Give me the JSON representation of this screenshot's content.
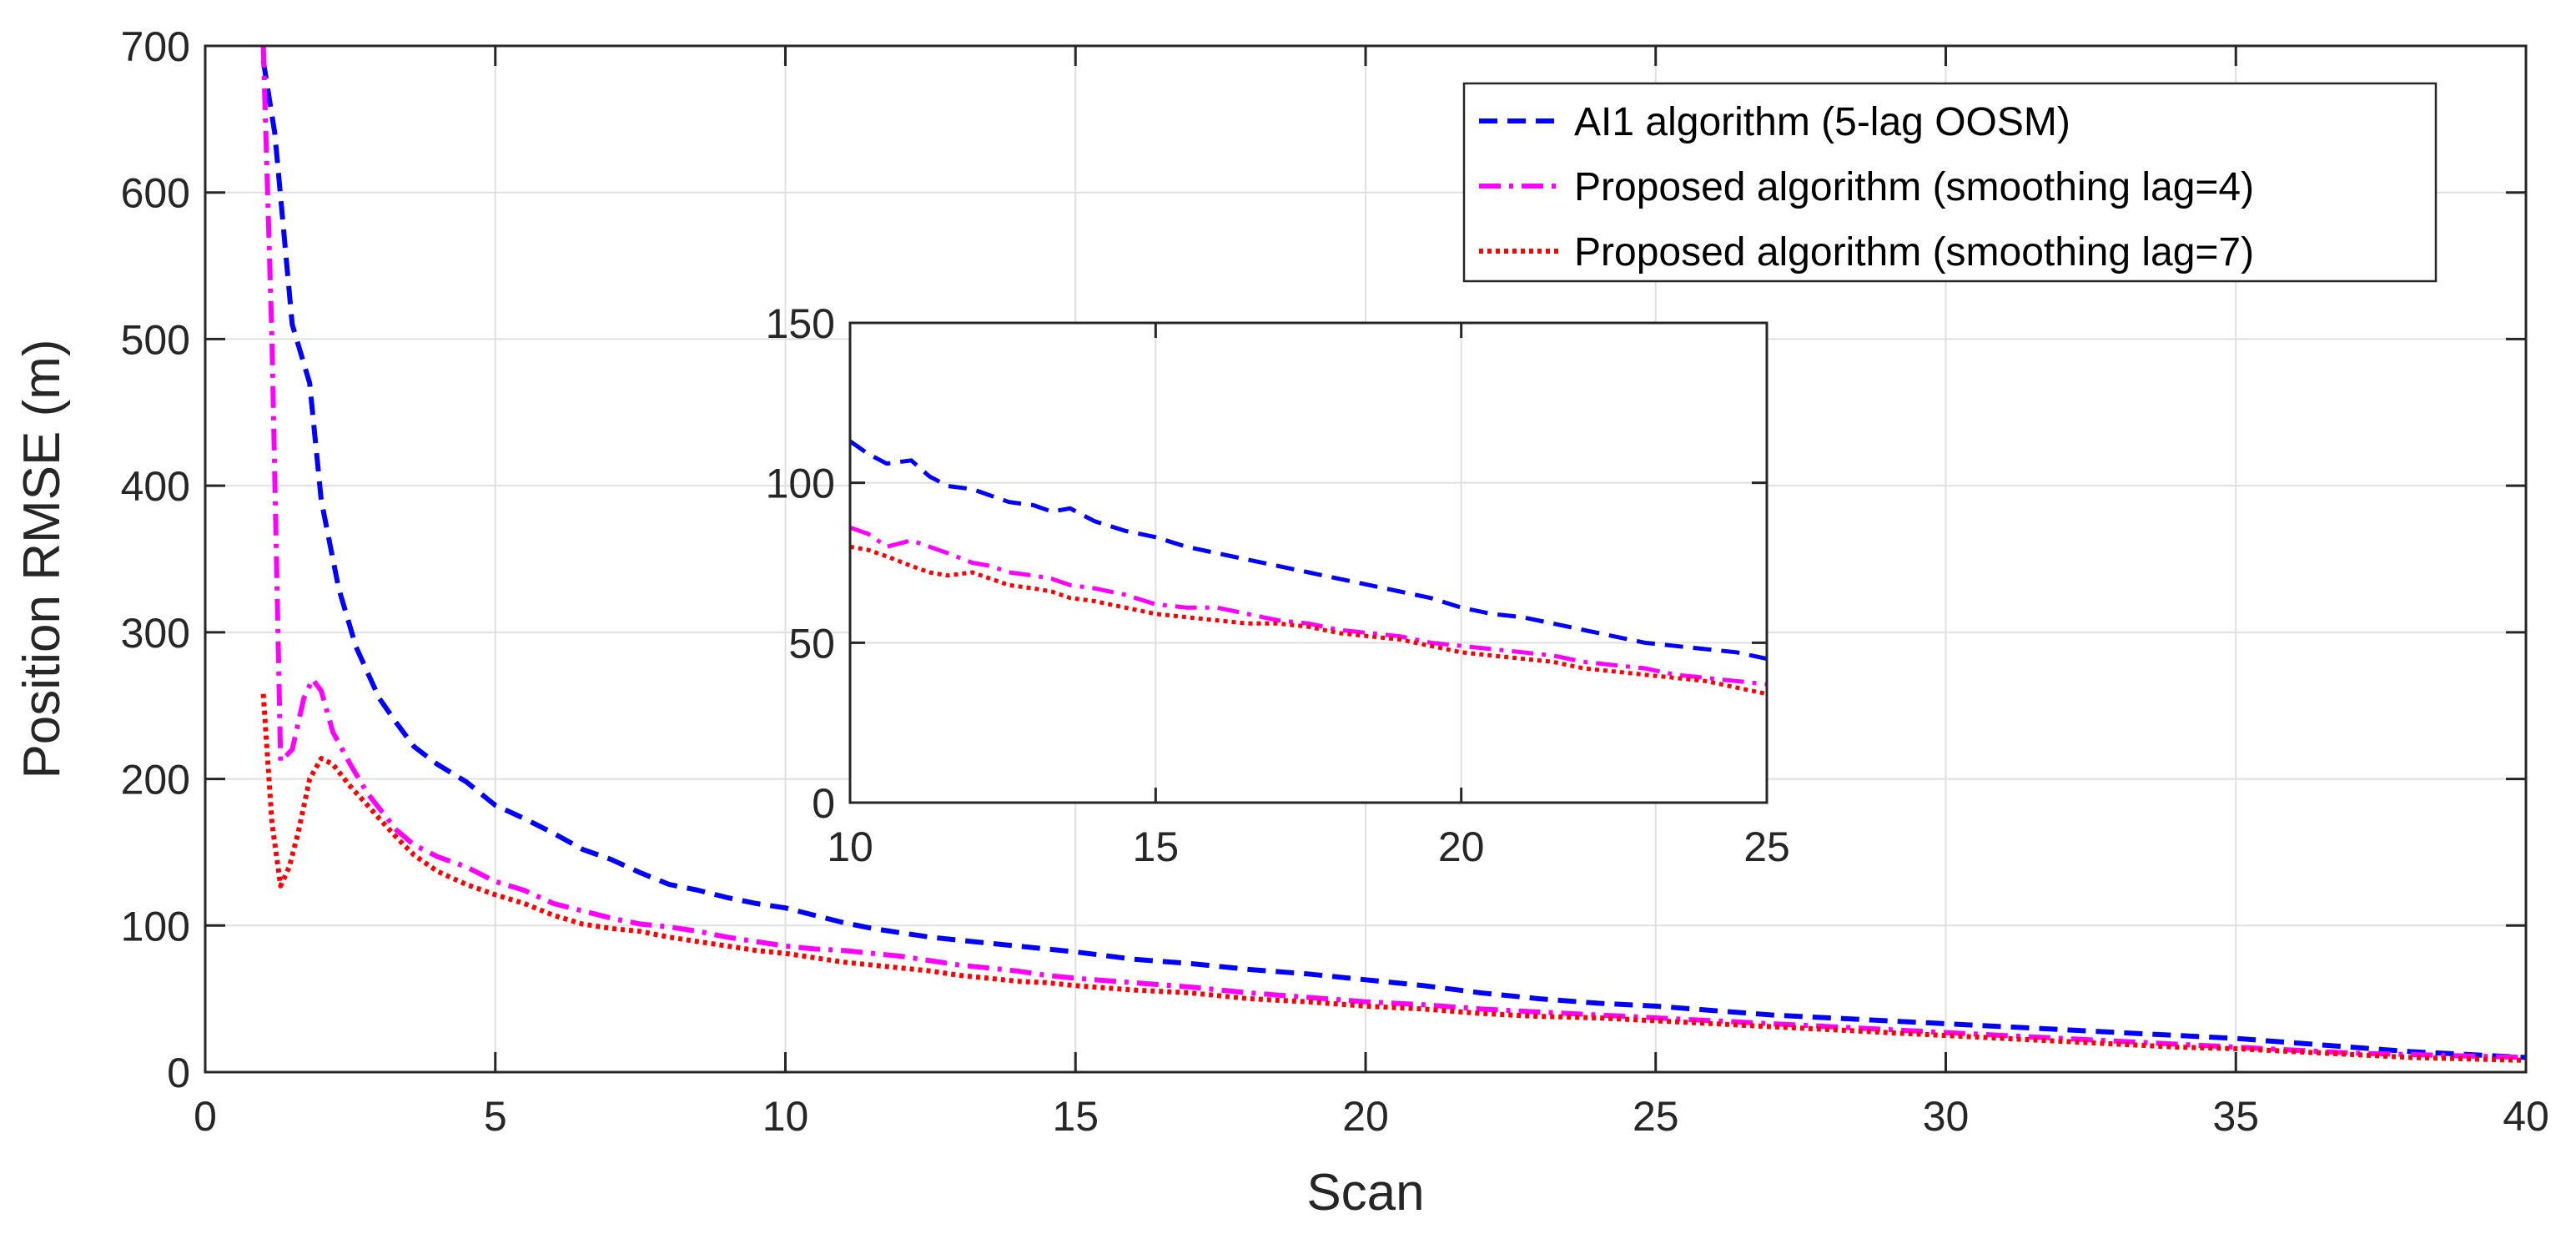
{
  "chart_data": [
    {
      "id": "main",
      "type": "line",
      "title": "",
      "xlabel": "Scan",
      "ylabel": "Position RMSE (m)",
      "xlim": [
        0,
        40
      ],
      "ylim": [
        0,
        700
      ],
      "xticks": [
        0,
        5,
        10,
        15,
        20,
        25,
        30,
        35,
        40
      ],
      "yticks": [
        0,
        100,
        200,
        300,
        400,
        500,
        600,
        700
      ],
      "grid": true,
      "legend_position": "top-right",
      "series": [
        {
          "name": "AI1 algorithm (5-lag OOSM)",
          "color": "#0000ff",
          "style": "dashed",
          "x": [
            1,
            1.2,
            1.5,
            1.8,
            2,
            2.3,
            2.6,
            3,
            3.3,
            3.6,
            4,
            4.5,
            5,
            5.5,
            6,
            6.5,
            7,
            7.5,
            8,
            8.5,
            9,
            9.5,
            10,
            10.5,
            11,
            11.5,
            12,
            12.5,
            13,
            13.5,
            14,
            14.5,
            15,
            16,
            17,
            18,
            19,
            20,
            21,
            22,
            23,
            24,
            25,
            26,
            27,
            28,
            29,
            30,
            31,
            32,
            33,
            34,
            35,
            36,
            37,
            38,
            39,
            40
          ],
          "y": [
            690,
            640,
            510,
            470,
            390,
            330,
            290,
            255,
            238,
            222,
            210,
            198,
            182,
            173,
            163,
            152,
            145,
            136,
            128,
            124,
            119,
            115,
            112,
            107,
            102,
            98,
            95,
            92,
            90,
            88,
            86,
            84,
            82,
            77,
            74,
            70,
            67,
            63,
            59,
            54,
            50,
            47,
            45,
            42,
            39,
            37,
            35,
            33,
            31,
            29,
            27,
            25,
            23,
            20,
            17,
            14,
            12,
            10
          ]
        },
        {
          "name": "Proposed algorithm (smoothing lag=4)",
          "color": "#ff00ff",
          "style": "dashdot",
          "x": [
            1,
            1.15,
            1.3,
            1.5,
            1.7,
            1.85,
            2,
            2.2,
            2.5,
            2.8,
            3,
            3.3,
            3.6,
            4,
            4.5,
            5,
            5.5,
            6,
            6.5,
            7,
            7.5,
            8,
            8.5,
            9,
            9.5,
            10,
            10.5,
            11,
            11.5,
            12,
            12.5,
            13,
            13.5,
            14,
            14.5,
            15,
            16,
            17,
            18,
            19,
            20,
            21,
            22,
            23,
            24,
            25,
            26,
            27,
            28,
            29,
            30,
            31,
            32,
            33,
            34,
            35,
            36,
            37,
            38,
            39,
            40
          ],
          "y": [
            700,
            500,
            212,
            220,
            255,
            268,
            260,
            232,
            210,
            190,
            180,
            165,
            155,
            147,
            140,
            130,
            124,
            115,
            110,
            105,
            101,
            99,
            96,
            92,
            89,
            86,
            84,
            83,
            81,
            79,
            76,
            73,
            71,
            69,
            66,
            64,
            61,
            58,
            54,
            51,
            48,
            46,
            43,
            41,
            39,
            37,
            35,
            33,
            31,
            29,
            27,
            25,
            23,
            21,
            19,
            17,
            15,
            13,
            12,
            11,
            10
          ]
        },
        {
          "name": "Proposed algorithm (smoothing lag=7)",
          "color": "#ff0000",
          "style": "dotted",
          "x": [
            1,
            1.15,
            1.3,
            1.45,
            1.6,
            1.8,
            2,
            2.2,
            2.5,
            2.8,
            3,
            3.3,
            3.6,
            4,
            4.5,
            5,
            5.5,
            6,
            6.5,
            7,
            7.5,
            8,
            8.5,
            9,
            9.5,
            10,
            10.5,
            11,
            11.5,
            12,
            12.5,
            13,
            13.5,
            14,
            14.5,
            15,
            16,
            17,
            18,
            19,
            20,
            21,
            22,
            23,
            24,
            25,
            26,
            27,
            28,
            29,
            30,
            31,
            32,
            33,
            34,
            35,
            36,
            37,
            38,
            39,
            40
          ],
          "y": [
            258,
            170,
            127,
            140,
            163,
            200,
            214,
            210,
            195,
            182,
            173,
            160,
            148,
            137,
            128,
            121,
            115,
            107,
            101,
            98,
            96,
            92,
            89,
            86,
            83,
            81,
            78,
            75,
            73,
            71,
            69,
            66,
            64,
            62,
            61,
            59,
            56,
            54,
            50,
            48,
            45,
            43,
            40,
            38,
            37,
            35,
            33,
            31,
            29,
            27,
            25,
            23,
            21,
            19,
            17,
            16,
            14,
            12,
            10,
            9,
            8
          ]
        }
      ]
    },
    {
      "id": "inset",
      "type": "line",
      "title": "",
      "xlabel": "",
      "ylabel": "",
      "xlim": [
        10,
        25
      ],
      "ylim": [
        0,
        150
      ],
      "xticks": [
        10,
        15,
        20,
        25
      ],
      "yticks": [
        0,
        50,
        100,
        150
      ],
      "grid": true,
      "series": [
        {
          "name": "AI1 algorithm (5-lag OOSM)",
          "color": "#0000ff",
          "style": "dashed",
          "x": [
            10,
            10.3,
            10.6,
            11,
            11.3,
            11.6,
            12,
            12.3,
            12.6,
            13,
            13.3,
            13.6,
            14,
            14.5,
            15,
            15.5,
            16,
            16.5,
            17,
            17.5,
            18,
            18.5,
            19,
            19.5,
            20,
            20.5,
            21,
            21.5,
            22,
            22.5,
            23,
            23.5,
            24,
            24.5,
            25
          ],
          "y": [
            113,
            109,
            106,
            107,
            102,
            99,
            98,
            96,
            94,
            93,
            91,
            92,
            88,
            85,
            83,
            80,
            78,
            76,
            74,
            72,
            70,
            68,
            66,
            64,
            61,
            59,
            58,
            56,
            54,
            52,
            50,
            49,
            48,
            47,
            45
          ]
        },
        {
          "name": "Proposed algorithm (smoothing lag=4)",
          "color": "#ff00ff",
          "style": "dashdot",
          "x": [
            10,
            10.3,
            10.6,
            11,
            11.3,
            11.6,
            12,
            12.3,
            12.6,
            13,
            13.3,
            13.6,
            14,
            14.5,
            15,
            15.5,
            16,
            16.5,
            17,
            17.5,
            18,
            18.5,
            19,
            19.5,
            20,
            20.5,
            21,
            21.5,
            22,
            22.5,
            23,
            23.5,
            24,
            24.5,
            25
          ],
          "y": [
            86,
            84,
            80,
            82,
            80,
            78,
            75,
            74,
            72,
            71,
            70,
            68,
            67,
            65,
            62,
            61,
            61,
            59,
            57,
            56,
            54,
            53,
            52,
            50,
            49,
            48,
            47,
            46,
            44,
            43,
            42,
            40,
            39,
            38,
            37
          ]
        },
        {
          "name": "Proposed algorithm (smoothing lag=7)",
          "color": "#ff0000",
          "style": "dotted",
          "x": [
            10,
            10.3,
            10.6,
            11,
            11.3,
            11.6,
            12,
            12.3,
            12.6,
            13,
            13.3,
            13.6,
            14,
            14.5,
            15,
            15.5,
            16,
            16.5,
            17,
            17.5,
            18,
            18.5,
            19,
            19.5,
            20,
            20.5,
            21,
            21.5,
            22,
            22.5,
            23,
            23.5,
            24,
            24.5,
            25
          ],
          "y": [
            80,
            79,
            77,
            74,
            72,
            71,
            72,
            70,
            68,
            67,
            66,
            64,
            63,
            61,
            59,
            58,
            57,
            56,
            56,
            55,
            53,
            52,
            51,
            49,
            47,
            46,
            45,
            44,
            42,
            41,
            40,
            39,
            38,
            36,
            34
          ]
        }
      ]
    }
  ]
}
